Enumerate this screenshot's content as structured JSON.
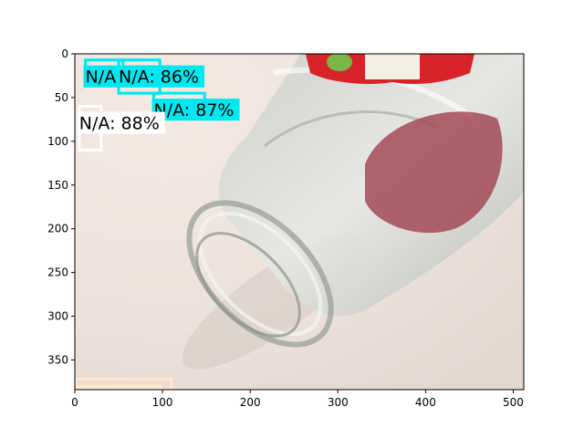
{
  "axes": {
    "x_ticks": [
      "0",
      "100",
      "200",
      "300",
      "400",
      "500"
    ],
    "y_ticks": [
      "0",
      "50",
      "100",
      "150",
      "200",
      "250",
      "300",
      "350"
    ],
    "xlim": [
      0,
      512
    ],
    "ylim": [
      384,
      0
    ]
  },
  "photo": {
    "subject": "clear glass jar lying on its side with a red label, on a light countertop"
  },
  "detections": [
    {
      "label": "N/A: 86%",
      "color": "#00e8f0",
      "x": 12,
      "y": 7,
      "w": 43,
      "h": 28
    },
    {
      "label": "N/A: 86%",
      "color": "#00e8f0",
      "x": 50,
      "y": 7,
      "w": 47,
      "h": 38
    },
    {
      "label": "N/A: 87%",
      "color": "#00e8f0",
      "x": 90,
      "y": 45,
      "w": 58,
      "h": 20
    },
    {
      "label": "N/A: 88%",
      "color": "#ffffff",
      "x": 5,
      "y": 60,
      "w": 25,
      "h": 50
    },
    {
      "label": "N/A: 86%",
      "color": "#ffe6cc",
      "x": 2,
      "y": 372,
      "w": 108,
      "h": 12
    }
  ]
}
